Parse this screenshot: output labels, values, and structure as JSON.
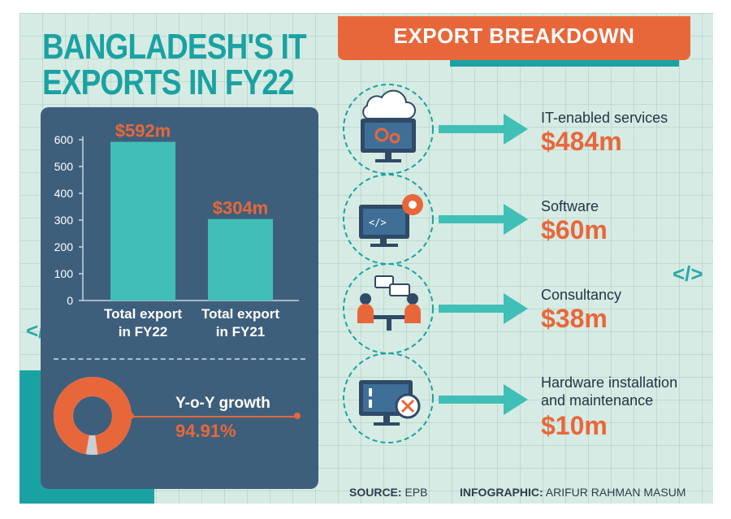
{
  "title_line1": "BANGLADESH'S IT",
  "title_line2": "EXPORTS IN FY22",
  "header": "EXPORT BREAKDOWN",
  "growth": {
    "label": "Y-o-Y growth",
    "value": "94.91%",
    "percent": 94.91
  },
  "colors": {
    "teal": "#1aa2a3",
    "orange": "#e8673a",
    "navy": "#3e5f7c",
    "bar": "#40bfb7",
    "background": "#d6ebe3"
  },
  "breakdown": [
    {
      "label": "IT-enabled services",
      "value": "$484m",
      "icon": "cloud-monitor-gears-icon"
    },
    {
      "label": "Software",
      "value": "$60m",
      "icon": "code-monitor-gear-icon"
    },
    {
      "label": "Consultancy",
      "value": "$38m",
      "icon": "people-meeting-icon"
    },
    {
      "label": "Hardware installation and maintenance",
      "label_lines": [
        "Hardware installation",
        "and maintenance"
      ],
      "value": "$10m",
      "icon": "monitor-wrench-gear-icon"
    }
  ],
  "footer": {
    "source_key": "SOURCE:",
    "source_val": "EPB",
    "infographic_key": "INFOGRAPHIC:",
    "infographic_val": "ARIFUR RAHMAN MASUM"
  },
  "chart_data": {
    "type": "bar",
    "categories": [
      [
        "Total export",
        "in FY22"
      ],
      [
        "Total export",
        "in FY21"
      ]
    ],
    "values": [
      592,
      304
    ],
    "data_labels": [
      "$592m",
      "$304m"
    ],
    "yticks": [
      0,
      100,
      200,
      300,
      400,
      500,
      600
    ],
    "ylim": [
      0,
      600
    ],
    "grid": false
  }
}
